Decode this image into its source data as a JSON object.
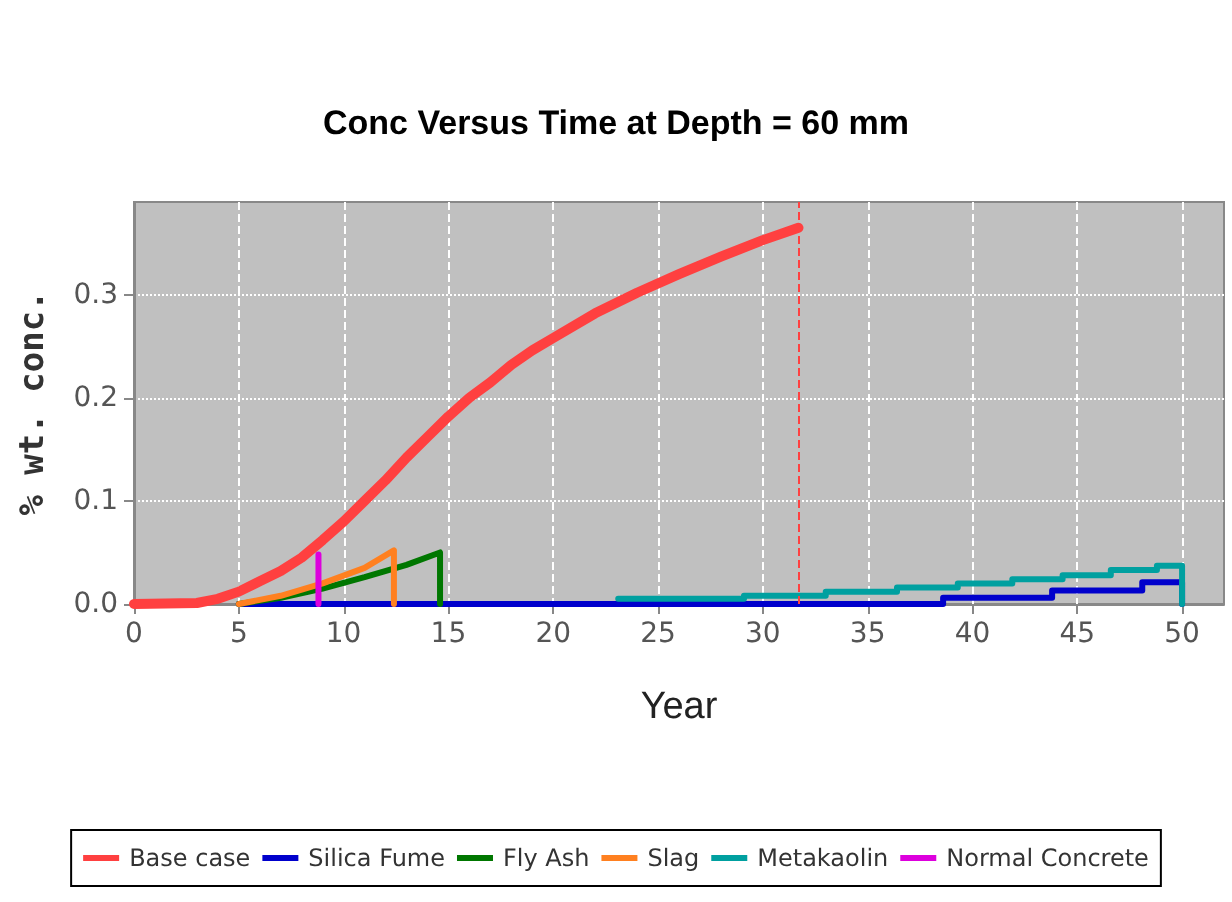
{
  "chart_data": {
    "type": "line",
    "title": "Conc Versus Time at Depth = 60 mm",
    "xlabel": "Year",
    "ylabel": "% wt. conc.",
    "xlim": [
      0,
      52
    ],
    "xticks": [
      0,
      5,
      10,
      15,
      20,
      25,
      30,
      35,
      40,
      45,
      50
    ],
    "ylim": [
      0,
      0.39
    ],
    "yticks": [
      {
        "value": 0,
        "label": "0.0"
      },
      0.1,
      0.2,
      0.3
    ],
    "grid": true,
    "legend": "bottom",
    "marker": "none",
    "line_style": "solid",
    "series": [
      {
        "name": "Base case",
        "color": "#ff4040",
        "x": [
          0,
          3,
          4,
          5,
          6,
          7,
          8,
          9,
          10,
          11,
          12,
          13,
          14,
          15,
          16,
          17,
          18,
          19,
          20,
          22,
          24,
          26,
          28,
          30,
          31.7
        ],
        "values": [
          0,
          0.001,
          0.005,
          0.012,
          0.022,
          0.032,
          0.045,
          0.062,
          0.08,
          0.1,
          0.12,
          0.142,
          0.162,
          0.182,
          0.2,
          0.215,
          0.232,
          0.246,
          0.258,
          0.282,
          0.302,
          0.32,
          0.337,
          0.353,
          0.365
        ]
      },
      {
        "name": "Silica Fume",
        "color": "#0000cc",
        "type": "step",
        "x": [
          5,
          38.6,
          43.8,
          48.1,
          50,
          50
        ],
        "values": [
          0,
          0.006,
          0.013,
          0.021,
          0.021,
          0
        ]
      },
      {
        "name": "Fly Ash",
        "color": "#007700",
        "x": [
          5,
          7,
          9,
          11,
          13,
          14.6,
          14.6
        ],
        "values": [
          0,
          0.006,
          0.015,
          0.026,
          0.038,
          0.05,
          0
        ]
      },
      {
        "name": "Slag",
        "color": "#ff8020",
        "x": [
          5,
          7,
          9,
          11,
          12.4,
          12.4
        ],
        "values": [
          0,
          0.008,
          0.02,
          0.035,
          0.052,
          0
        ]
      },
      {
        "name": "Metakaolin",
        "color": "#00a0a0",
        "type": "step",
        "x": [
          23.1,
          29.1,
          33,
          36.4,
          39.3,
          41.9,
          44.3,
          46.6,
          48.8,
          50,
          50
        ],
        "values": [
          0.005,
          0.008,
          0.012,
          0.016,
          0.02,
          0.024,
          0.028,
          0.033,
          0.037,
          0.038,
          0
        ]
      },
      {
        "name": "Normal Concrete",
        "color": "#dd00dd",
        "x": [
          8.8,
          8.8
        ],
        "values": [
          0,
          0.048
        ]
      }
    ],
    "ref_lines": [
      {
        "axis": "x",
        "value": 31.7,
        "color": "#ff4040",
        "line_style": "dashed"
      }
    ]
  }
}
